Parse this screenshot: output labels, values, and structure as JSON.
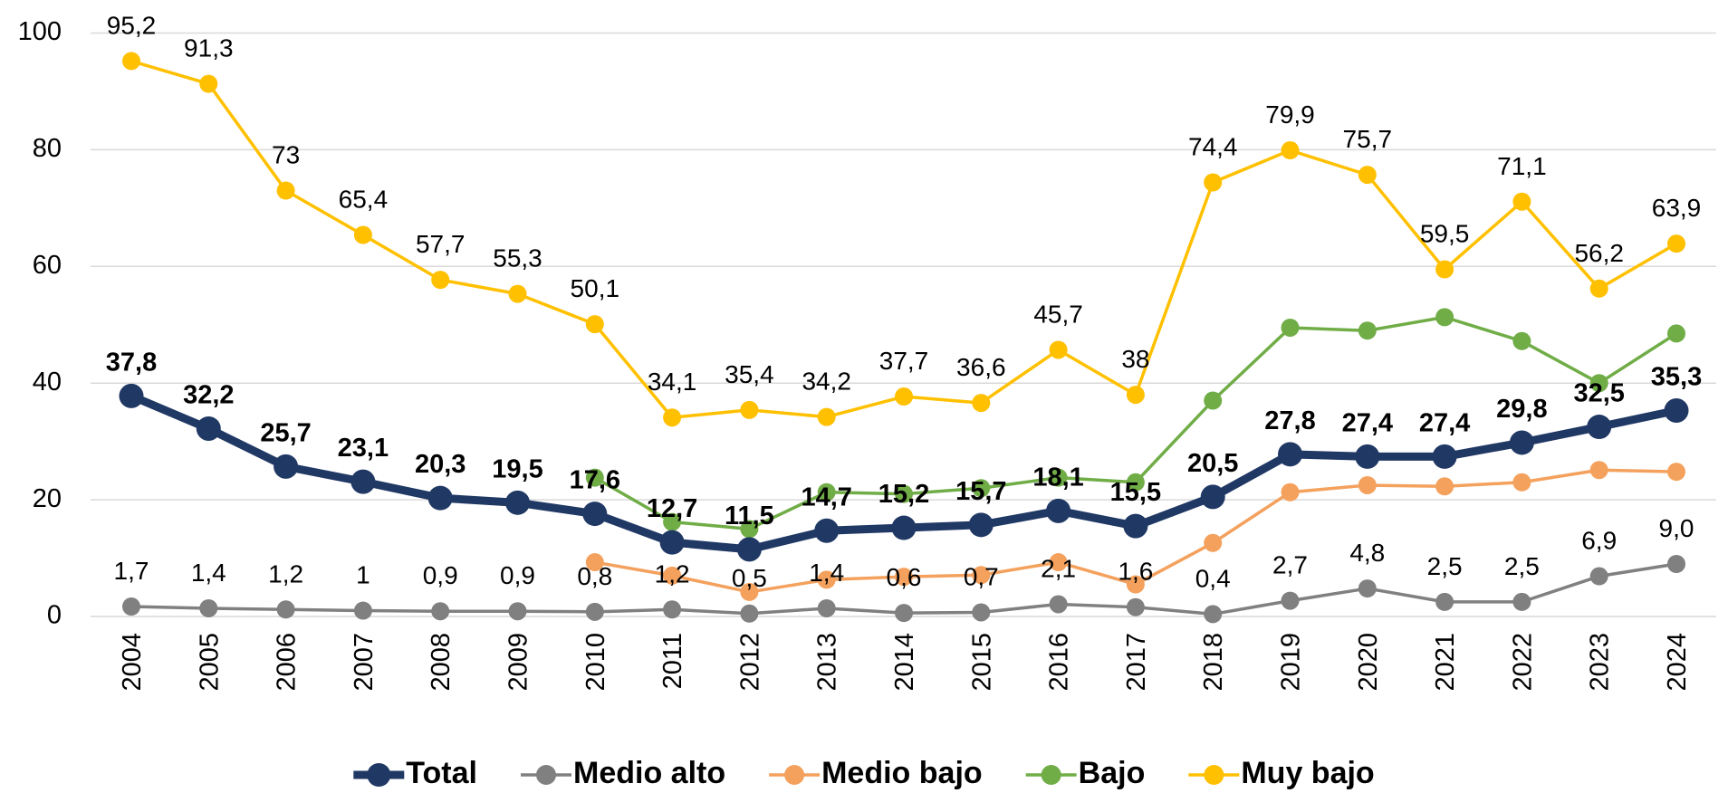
{
  "chart_data": {
    "type": "line",
    "categories": [
      "2004",
      "2005",
      "2006",
      "2007",
      "2008",
      "2009",
      "2010",
      "2011",
      "2012",
      "2013",
      "2014",
      "2015",
      "2016",
      "2017",
      "2018",
      "2019",
      "2020",
      "2021",
      "2022",
      "2023",
      "2024"
    ],
    "ylim": [
      0,
      100
    ],
    "yticks": [
      0,
      20,
      40,
      60,
      80,
      100
    ],
    "grid": true,
    "legend": "bottom",
    "series": [
      {
        "name": "Total",
        "color": "#203864",
        "bold": true,
        "values": [
          37.8,
          32.2,
          25.7,
          23.1,
          20.3,
          19.5,
          17.6,
          12.7,
          11.5,
          14.7,
          15.2,
          15.7,
          18.1,
          15.5,
          20.5,
          27.8,
          27.4,
          27.4,
          29.8,
          32.5,
          35.3
        ],
        "value_labels": [
          "37,8",
          "32,2",
          "25,7",
          "23,1",
          "20,3",
          "19,5",
          "17,6",
          "12,7",
          "11,5",
          "14,7",
          "15,2",
          "15,7",
          "18,1",
          "15,5",
          "20,5",
          "27,8",
          "27,4",
          "27,4",
          "29,8",
          "32,5",
          "35,3"
        ]
      },
      {
        "name": "Medio alto",
        "color": "#808080",
        "values": [
          1.7,
          1.4,
          1.2,
          1,
          0.9,
          0.9,
          0.8,
          1.2,
          0.5,
          1.4,
          0.6,
          0.7,
          2.1,
          1.6,
          0.4,
          2.7,
          4.8,
          2.5,
          2.5,
          6.9,
          9.0
        ],
        "value_labels": [
          "1,7",
          "1,4",
          "1,2",
          "1",
          "0,9",
          "0,9",
          "0,8",
          "1,2",
          "0,5",
          "1,4",
          "0,6",
          "0,7",
          "2,1",
          "1,6",
          "0,4",
          "2,7",
          "4,8",
          "2,5",
          "2,5",
          "6,9",
          "9,0"
        ]
      },
      {
        "name": "Medio bajo",
        "color": "#f4a15d",
        "values": [
          null,
          null,
          null,
          null,
          null,
          null,
          9.3,
          7,
          4.2,
          6.3,
          6.8,
          7.1,
          9.3,
          5.5,
          12.6,
          21.3,
          22.5,
          22.3,
          23,
          25.1,
          24.8
        ]
      },
      {
        "name": "Bajo",
        "color": "#70ad47",
        "values": [
          null,
          null,
          null,
          null,
          null,
          null,
          23.8,
          16.2,
          15,
          21.3,
          21,
          22,
          23.8,
          23,
          37,
          49.5,
          49,
          51.3,
          47.2,
          40,
          48.5
        ]
      },
      {
        "name": "Muy bajo",
        "color": "#ffc000",
        "values": [
          95.2,
          91.3,
          73,
          65.4,
          57.7,
          55.3,
          50.1,
          34.1,
          35.4,
          34.2,
          37.7,
          36.6,
          45.7,
          38,
          74.4,
          79.9,
          75.7,
          59.5,
          71.1,
          56.2,
          63.9
        ],
        "value_labels": [
          "95,2",
          "91,3",
          "73",
          "65,4",
          "57,7",
          "55,3",
          "50,1",
          "34,1",
          "35,4",
          "34,2",
          "37,7",
          "36,6",
          "45,7",
          "38",
          "74,4",
          "79,9",
          "75,7",
          "59,5",
          "71,1",
          "56,2",
          "63,9"
        ]
      }
    ]
  }
}
